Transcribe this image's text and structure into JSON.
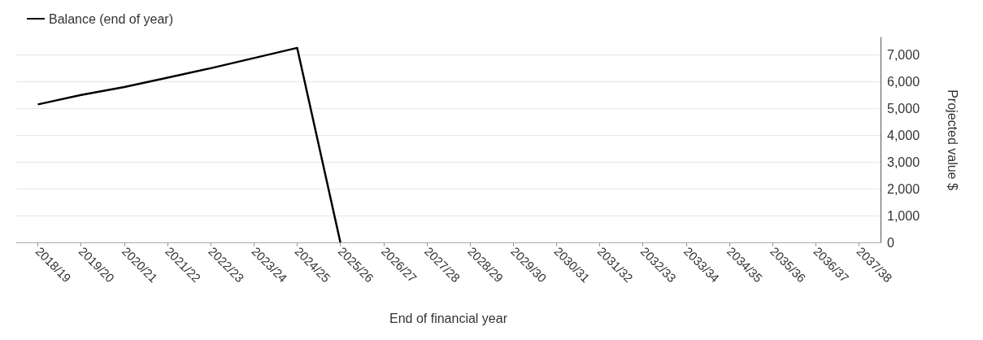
{
  "chart_data": {
    "type": "line",
    "xlabel": "End of financial year",
    "ylabel": "Projected value $",
    "categories": [
      "2018/19",
      "2019/20",
      "2020/21",
      "2021/22",
      "2022/23",
      "2023/24",
      "2024/25",
      "2025/26",
      "2026/27",
      "2027/28",
      "2028/29",
      "2029/30",
      "2030/31",
      "2031/32",
      "2032/33",
      "2033/34",
      "2034/35",
      "2035/36",
      "2036/37",
      "2037/38"
    ],
    "series": [
      {
        "name": "Balance (end of year)",
        "color": "#000000",
        "values": [
          5150,
          5500,
          5800,
          6150,
          6500,
          6880,
          7260,
          0,
          null,
          null,
          null,
          null,
          null,
          null,
          null,
          null,
          null,
          null,
          null,
          null
        ]
      }
    ],
    "ylim": [
      0,
      7650
    ],
    "yticks": [
      {
        "value": 0,
        "label": "0"
      },
      {
        "value": 1000,
        "label": "1,000"
      },
      {
        "value": 2000,
        "label": "2,000"
      },
      {
        "value": 3000,
        "label": "3,000"
      },
      {
        "value": 4000,
        "label": "4,000"
      },
      {
        "value": 5000,
        "label": "5,000"
      },
      {
        "value": 6000,
        "label": "6,000"
      },
      {
        "value": 7000,
        "label": "7,000"
      }
    ],
    "grid": "y",
    "legend": "top left",
    "marker": "none",
    "line_style": "solid"
  }
}
